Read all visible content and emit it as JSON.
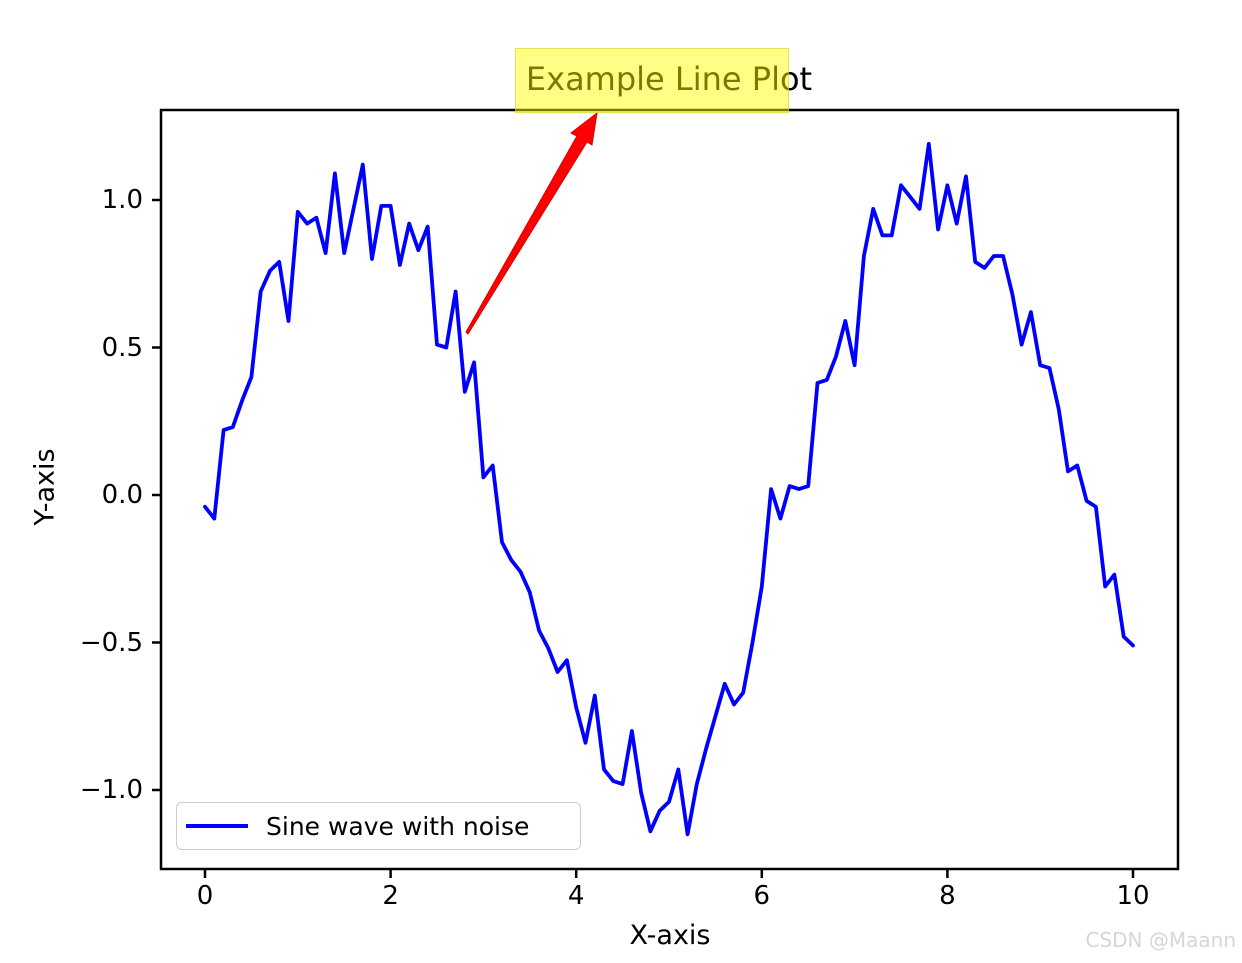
{
  "figure": {
    "title": "Example Line Plot",
    "title_highlight_covers": "Example Line Pl",
    "xlabel": "X-axis",
    "ylabel": "Y-axis",
    "legend_label": "Sine wave with noise",
    "watermark": "CSDN @Maann"
  },
  "colors": {
    "line": "#0000ff",
    "arrow": "#ff0000",
    "title_highlight": "rgba(255,255,0,0.48)",
    "legend_border": "#cccccc",
    "watermark": "#d6d6d6",
    "axes": "#000000"
  },
  "chart_data": {
    "type": "line",
    "title": "Example Line Plot",
    "xlabel": "X-axis",
    "ylabel": "Y-axis",
    "legend": {
      "entries": [
        "Sine wave with noise"
      ],
      "position": "lower left"
    },
    "grid": false,
    "xlim": [
      -0.49,
      10.49
    ],
    "ylim": [
      -1.27,
      1.3
    ],
    "xticks": [
      0,
      2,
      4,
      6,
      8,
      10
    ],
    "xtick_labels": [
      "0",
      "2",
      "4",
      "6",
      "8",
      "10"
    ],
    "yticks": [
      1.0,
      0.5,
      0.0,
      -0.5,
      -1.0
    ],
    "ytick_labels": [
      "1.0",
      "0.5",
      "0.0",
      "−0.5",
      "−1.0"
    ],
    "series": [
      {
        "name": "Sine wave with noise",
        "color": "#0000ff",
        "x": [
          0,
          0.1,
          0.2,
          0.3,
          0.4,
          0.5,
          0.6,
          0.7,
          0.8,
          0.9,
          1,
          1.1,
          1.2,
          1.3,
          1.4,
          1.5,
          1.6,
          1.7,
          1.8,
          1.9,
          2,
          2.1,
          2.2,
          2.3,
          2.4,
          2.5,
          2.6,
          2.7,
          2.8,
          2.9,
          3,
          3.1,
          3.2,
          3.3,
          3.4,
          3.5,
          3.6,
          3.7,
          3.8,
          3.9,
          4,
          4.1,
          4.2,
          4.3,
          4.4,
          4.5,
          4.6,
          4.7,
          4.8,
          4.9,
          5,
          5.1,
          5.2,
          5.3,
          5.4,
          5.5,
          5.6,
          5.7,
          5.8,
          5.9,
          6,
          6.1,
          6.2,
          6.3,
          6.4,
          6.5,
          6.6,
          6.7,
          6.8,
          6.9,
          7,
          7.1,
          7.2,
          7.3,
          7.4,
          7.5,
          7.6,
          7.7,
          7.8,
          7.9,
          8,
          8.1,
          8.2,
          8.3,
          8.4,
          8.5,
          8.6,
          8.7,
          8.8,
          8.9,
          9,
          9.1,
          9.2,
          9.3,
          9.4,
          9.5,
          9.6,
          9.7,
          9.8,
          9.9,
          10
        ],
        "y": [
          -0.04,
          -0.08,
          0.22,
          0.23,
          0.32,
          0.4,
          0.69,
          0.76,
          0.79,
          0.59,
          0.96,
          0.92,
          0.94,
          0.82,
          1.09,
          0.82,
          0.97,
          1.12,
          0.8,
          0.98,
          0.98,
          0.78,
          0.92,
          0.83,
          0.91,
          0.51,
          0.5,
          0.69,
          0.35,
          0.45,
          0.06,
          0.1,
          -0.16,
          -0.22,
          -0.26,
          -0.33,
          -0.46,
          -0.52,
          -0.6,
          -0.56,
          -0.72,
          -0.84,
          -0.68,
          -0.93,
          -0.97,
          -0.98,
          -0.8,
          -1.01,
          -1.14,
          -1.07,
          -1.04,
          -0.93,
          -1.15,
          -0.98,
          -0.86,
          -0.75,
          -0.64,
          -0.71,
          -0.67,
          -0.5,
          -0.31,
          0.02,
          -0.08,
          0.03,
          0.02,
          0.03,
          0.38,
          0.39,
          0.47,
          0.59,
          0.44,
          0.81,
          0.97,
          0.88,
          0.88,
          1.05,
          1.01,
          0.97,
          1.19,
          0.9,
          1.05,
          0.92,
          1.08,
          0.79,
          0.77,
          0.81,
          0.81,
          0.68,
          0.51,
          0.62,
          0.44,
          0.43,
          0.29,
          0.08,
          0.1,
          -0.02,
          -0.04,
          -0.31,
          -0.27,
          -0.48,
          -0.51
        ]
      }
    ],
    "annotations": [
      {
        "type": "arrow",
        "color": "#ff0000",
        "tail_data_xy": [
          2.8,
          0.55
        ],
        "points_to": "title box"
      },
      {
        "type": "highlight",
        "color": "yellow",
        "over": "title text 'Example Line Pl'"
      }
    ]
  }
}
